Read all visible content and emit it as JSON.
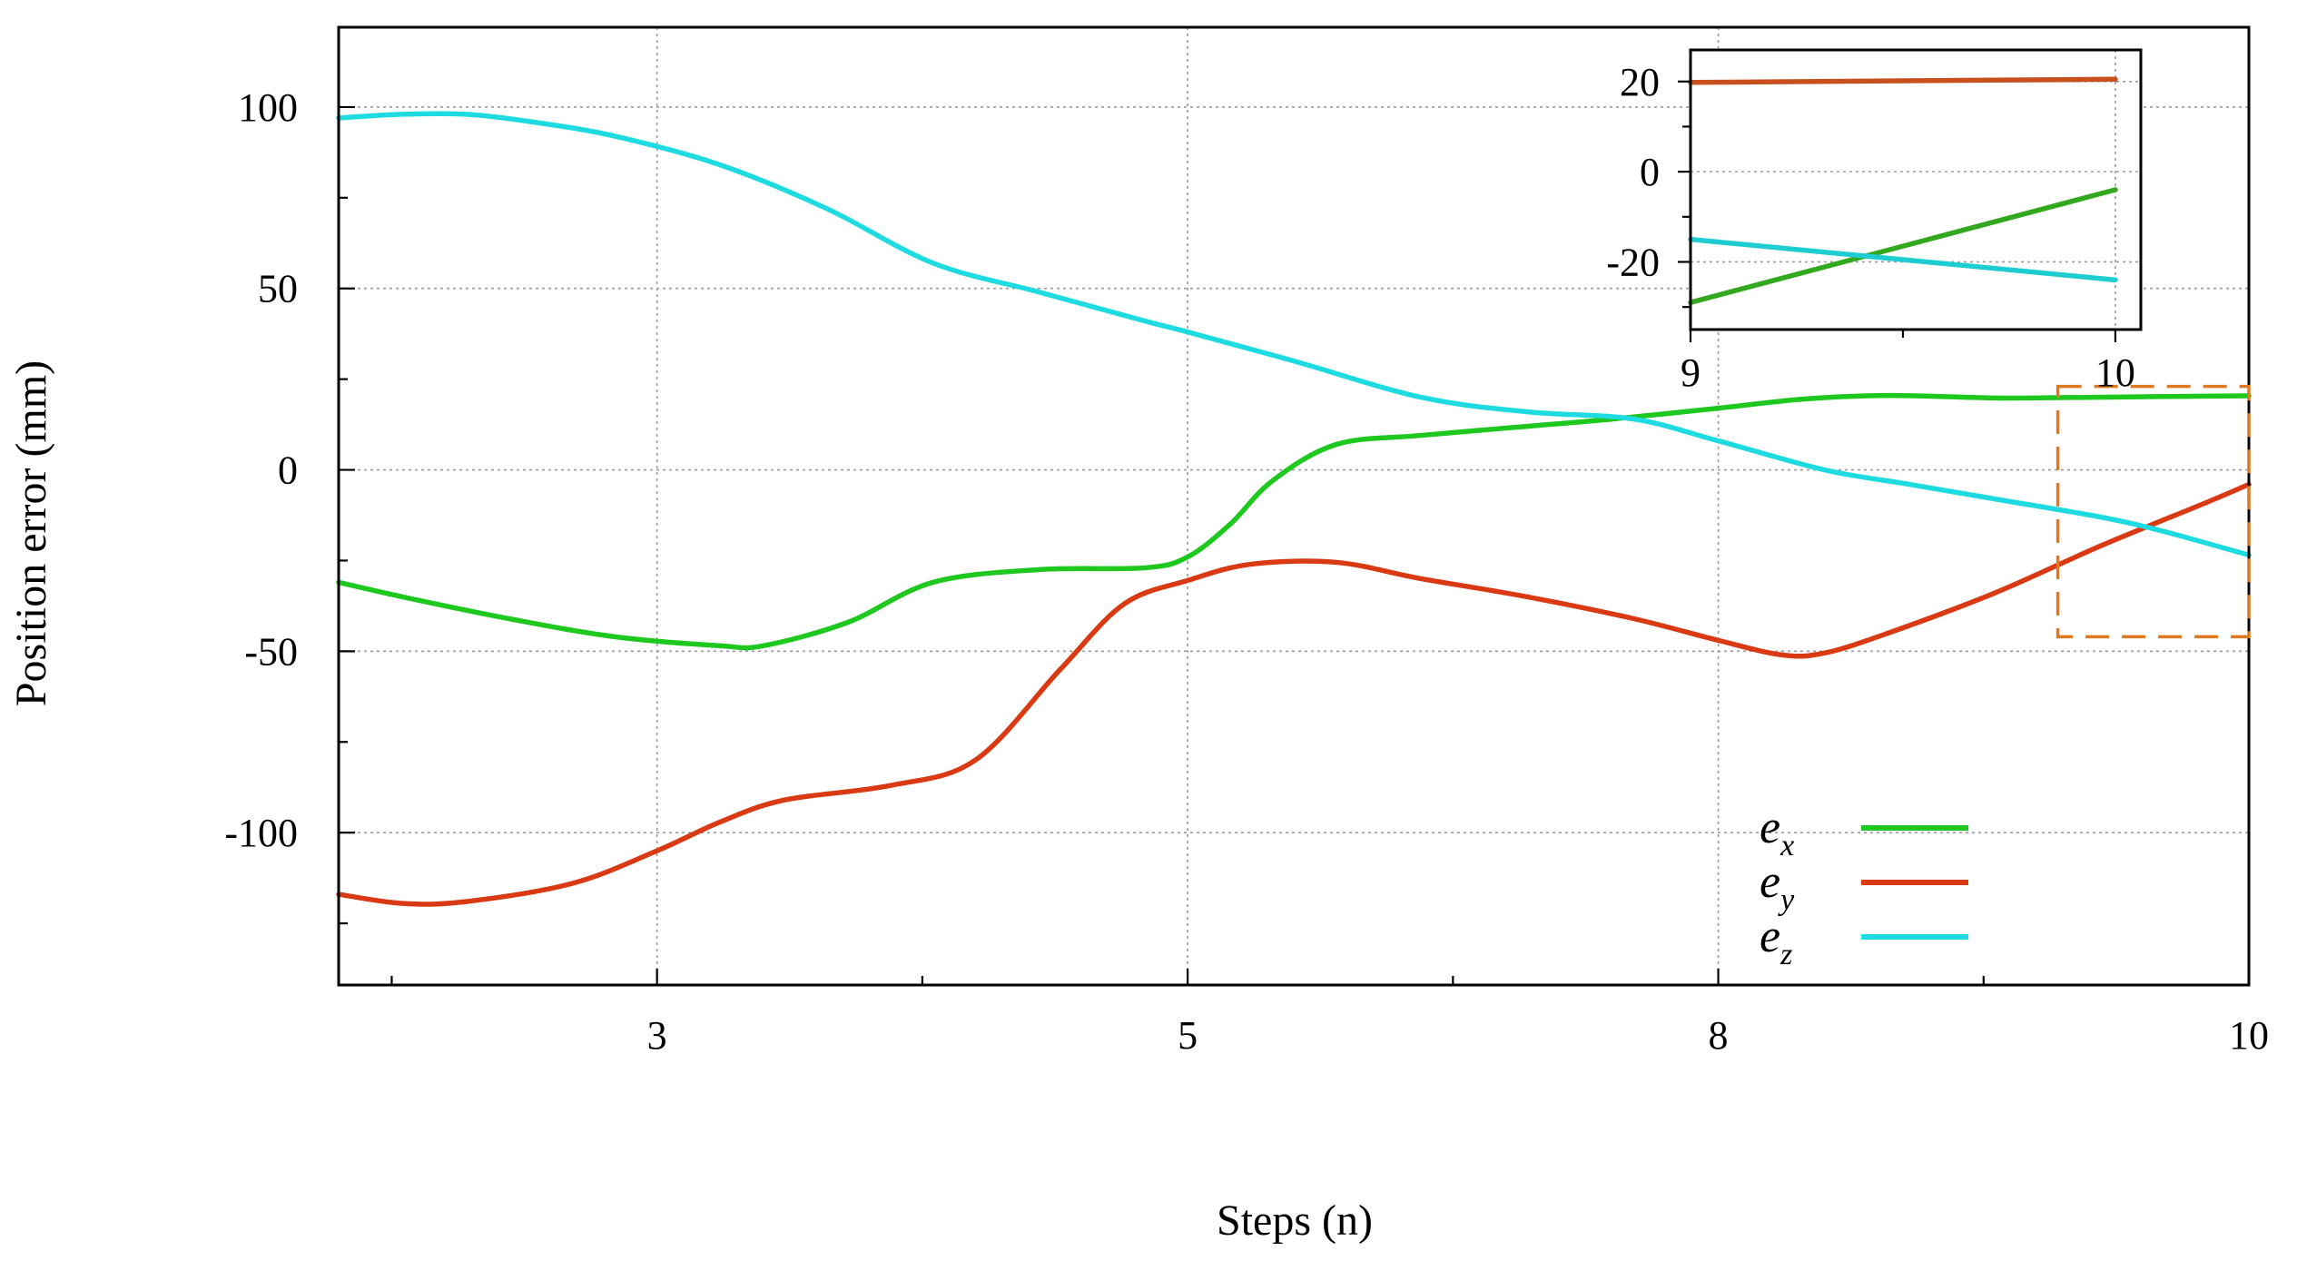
{
  "chart_data": {
    "type": "line",
    "title": "",
    "xlabel": "Steps (n)",
    "ylabel": "Position error (mm)",
    "xlim": [
      1.2,
      10.2
    ],
    "ylim": [
      -142,
      122
    ],
    "x_ticks": [
      {
        "value": 2.7,
        "label": "3"
      },
      {
        "value": 5.2,
        "label": "5"
      },
      {
        "value": 7.7,
        "label": "8"
      },
      {
        "value": 10.2,
        "label": "10"
      }
    ],
    "x_minor_ticks": [
      1.45,
      3.95,
      6.45,
      8.95
    ],
    "y_ticks": [
      {
        "value": 100,
        "label": "100"
      },
      {
        "value": 50,
        "label": "50"
      },
      {
        "value": 0,
        "label": "0"
      },
      {
        "value": -50,
        "label": "-50"
      },
      {
        "value": -100,
        "label": "-100"
      }
    ],
    "y_minor_ticks": [
      75,
      25,
      -25,
      -75,
      -125
    ],
    "grid": true,
    "legend_position": "bottom-right",
    "series": [
      {
        "name": "e_x",
        "label_main": "e",
        "label_sub": "x",
        "color": "#1ec81e",
        "x": [
          1.2,
          1.5,
          2.0,
          2.5,
          3.0,
          3.2,
          3.6,
          4.0,
          4.5,
          5.0,
          5.2,
          5.4,
          5.6,
          5.9,
          6.3,
          6.8,
          7.2,
          7.7,
          8.1,
          8.5,
          9.0,
          9.3,
          9.8,
          10.2
        ],
        "y": [
          -31,
          -35,
          -41,
          -46,
          -48.5,
          -48.5,
          -42,
          -31,
          -27.5,
          -27,
          -24,
          -15,
          -3,
          7,
          9.5,
          12,
          14,
          17,
          19.5,
          20.5,
          19.8,
          19.9,
          20.2,
          20.4
        ]
      },
      {
        "name": "e_y",
        "label_main": "e",
        "label_sub": "y",
        "color": "#d93a14",
        "x": [
          1.2,
          1.5,
          1.8,
          2.3,
          2.7,
          3.0,
          3.3,
          3.8,
          4.2,
          4.6,
          4.9,
          5.2,
          5.5,
          5.9,
          6.3,
          6.8,
          7.3,
          7.7,
          8.0,
          8.2,
          8.5,
          9.0,
          9.5,
          10.0,
          10.2
        ],
        "y": [
          -117,
          -119.5,
          -119,
          -114,
          -105,
          -97,
          -91,
          -87,
          -80,
          -55,
          -37,
          -30.5,
          -26,
          -25.5,
          -30,
          -35,
          -41,
          -47,
          -51,
          -50.5,
          -45,
          -34,
          -21,
          -9,
          -4
        ]
      },
      {
        "name": "e_z",
        "label_main": "e",
        "label_sub": "z",
        "color": "#1edbe1",
        "x": [
          1.2,
          1.5,
          1.8,
          2.1,
          2.5,
          3.0,
          3.5,
          4.0,
          4.5,
          5.0,
          5.2,
          5.7,
          6.3,
          6.8,
          7.3,
          7.7,
          8.2,
          8.6,
          9.0,
          9.5,
          9.8,
          10.2
        ],
        "y": [
          97,
          98,
          98,
          96,
          92,
          84,
          72,
          57,
          49,
          41,
          38,
          30,
          20,
          16,
          14,
          8,
          0,
          -4,
          -8,
          -13,
          -17,
          -23.5
        ]
      }
    ],
    "zoom_box": {
      "x_range": [
        9.3,
        10.2
      ],
      "y_range": [
        -46,
        23
      ],
      "color": "#e0781e"
    },
    "inset": {
      "type": "line",
      "xlim": [
        9,
        10.06
      ],
      "ylim": [
        -35,
        27
      ],
      "x_ticks": [
        {
          "value": 9,
          "label": "9"
        },
        {
          "value": 10,
          "label": "10"
        }
      ],
      "x_minor_ticks": [
        9.5
      ],
      "y_ticks": [
        {
          "value": 20,
          "label": "20"
        },
        {
          "value": 0,
          "label": "0"
        },
        {
          "value": -20,
          "label": "-20"
        }
      ],
      "y_minor_ticks": [
        10,
        -10,
        -30
      ],
      "series": [
        {
          "name": "e_x",
          "color": "#c8501e",
          "x": [
            9,
            10
          ],
          "y": [
            19.8,
            20.5
          ]
        },
        {
          "name": "e_y",
          "color": "#32a81e",
          "x": [
            9,
            10
          ],
          "y": [
            -29,
            -4
          ]
        },
        {
          "name": "e_z",
          "color": "#1ecdd2",
          "x": [
            9,
            10
          ],
          "y": [
            -15,
            -24
          ]
        }
      ]
    }
  }
}
